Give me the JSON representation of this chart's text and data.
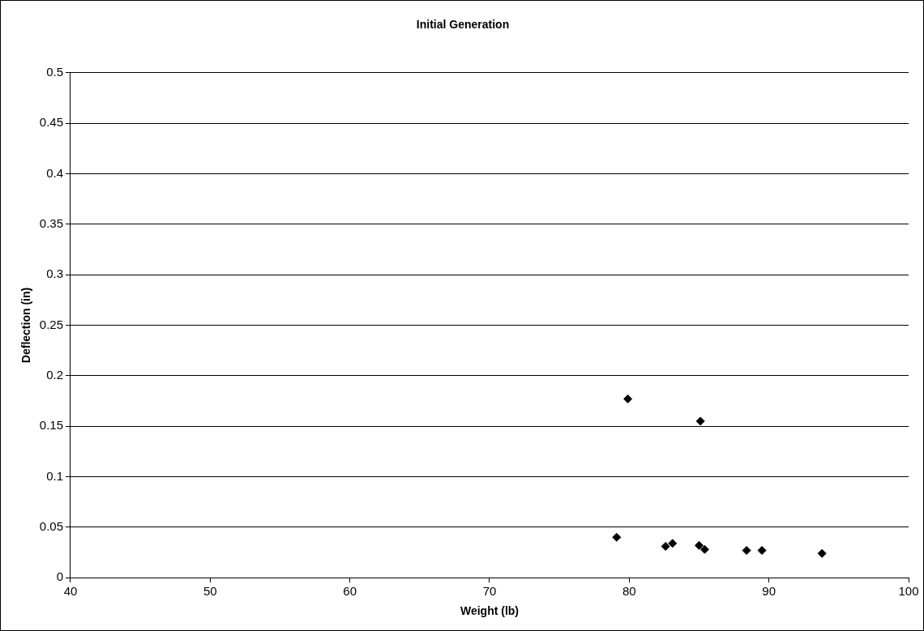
{
  "chart_data": {
    "type": "scatter",
    "title": "Initial Generation",
    "xlabel": "Weight (lb)",
    "ylabel": "Deflection (in)",
    "x": [
      79.9,
      85.1,
      79.1,
      82.6,
      83.1,
      85.0,
      85.4,
      88.4,
      89.5,
      93.8
    ],
    "values": [
      0.177,
      0.155,
      0.04,
      0.031,
      0.034,
      0.032,
      0.028,
      0.027,
      0.027,
      0.024
    ],
    "color": "#000000",
    "marker": "diamond",
    "xlim": [
      40,
      100
    ],
    "xticks": [
      40,
      50,
      60,
      70,
      80,
      90,
      100
    ],
    "ylim": [
      0,
      0.5
    ],
    "yticks": [
      0,
      0.05,
      0.1,
      0.15,
      0.2,
      0.25,
      0.3,
      0.35,
      0.4,
      0.45,
      0.5
    ],
    "grid": "y",
    "legend": false
  }
}
